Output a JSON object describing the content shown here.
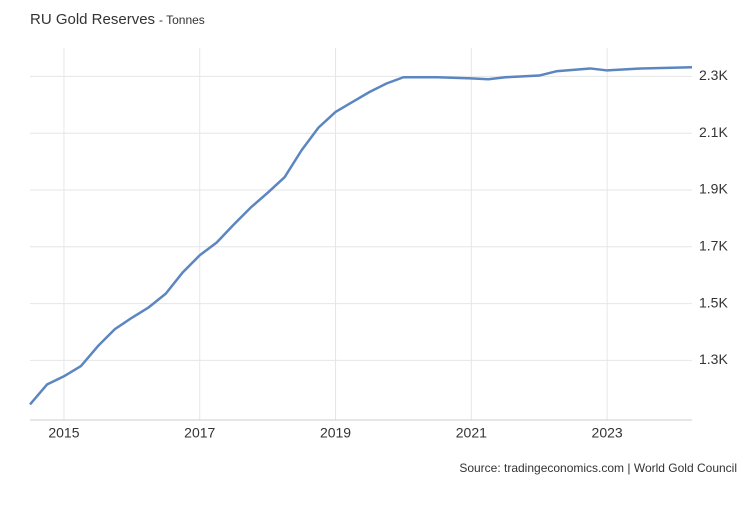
{
  "chart_data": {
    "type": "line",
    "title": "RU Gold Reserves",
    "subtitle": "- Tonnes",
    "source": "Source: tradingeconomics.com | World Gold Council",
    "x": [
      2014.5,
      2014.75,
      2015.0,
      2015.25,
      2015.5,
      2015.75,
      2016.0,
      2016.25,
      2016.5,
      2016.75,
      2017.0,
      2017.25,
      2017.5,
      2017.75,
      2018.0,
      2018.25,
      2018.5,
      2018.75,
      2019.0,
      2019.25,
      2019.5,
      2019.75,
      2020.0,
      2020.5,
      2021.0,
      2021.25,
      2021.5,
      2022.0,
      2022.25,
      2022.75,
      2023.0,
      2023.5,
      2024.25
    ],
    "series": [
      {
        "name": "Gold Reserves",
        "color": "#5b86c0",
        "values": [
          1145,
          1215,
          1244,
          1280,
          1350,
          1410,
          1450,
          1487,
          1535,
          1610,
          1670,
          1715,
          1778,
          1838,
          1890,
          1945,
          2040,
          2120,
          2175,
          2210,
          2245,
          2275,
          2297,
          2297,
          2293,
          2290,
          2297,
          2303,
          2318,
          2328,
          2321,
          2328,
          2332
        ]
      }
    ],
    "xlim": [
      2014.5,
      2024.25
    ],
    "xticks": [
      2015,
      2017,
      2019,
      2021,
      2023
    ],
    "ylim": [
      1090,
      2400
    ],
    "yticks": [
      {
        "value": 1300,
        "label": "1.3K"
      },
      {
        "value": 1500,
        "label": "1.5K"
      },
      {
        "value": 1700,
        "label": "1.7K"
      },
      {
        "value": 1900,
        "label": "1.9K"
      },
      {
        "value": 2100,
        "label": "2.1K"
      },
      {
        "value": 2300,
        "label": "2.3K"
      }
    ],
    "grid": true
  }
}
